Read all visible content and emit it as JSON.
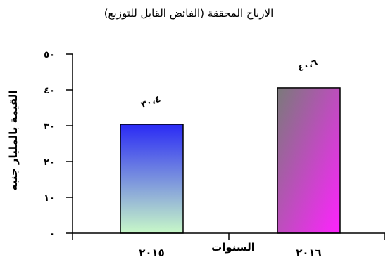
{
  "chart_data": {
    "type": "bar",
    "title": "الارباح المحققة (الفائض القابل للتوزيع)",
    "xlabel": "السنوات",
    "ylabel": "القيمة بالمليار جنيه",
    "categories": [
      "٢٠١٥",
      "٢٠١٦"
    ],
    "values": [
      30.4,
      40.6
    ],
    "data_labels": [
      "٣٠،٤",
      "٤٠،٦"
    ],
    "ylim": [
      0,
      50
    ],
    "yticks": [
      0,
      10,
      20,
      30,
      40,
      50
    ],
    "ytick_labels": [
      "٠",
      "١٠",
      "٢٠",
      "٣٠",
      "٤٠",
      "٥٠"
    ],
    "grid": false,
    "legend": "none",
    "colors": {
      "bar_2015_top": "#2a2af5",
      "bar_2015_bottom": "#c8f8c8",
      "bar_2016_left": "#7a7a7a",
      "bar_2016_right": "#ff22ff"
    }
  }
}
